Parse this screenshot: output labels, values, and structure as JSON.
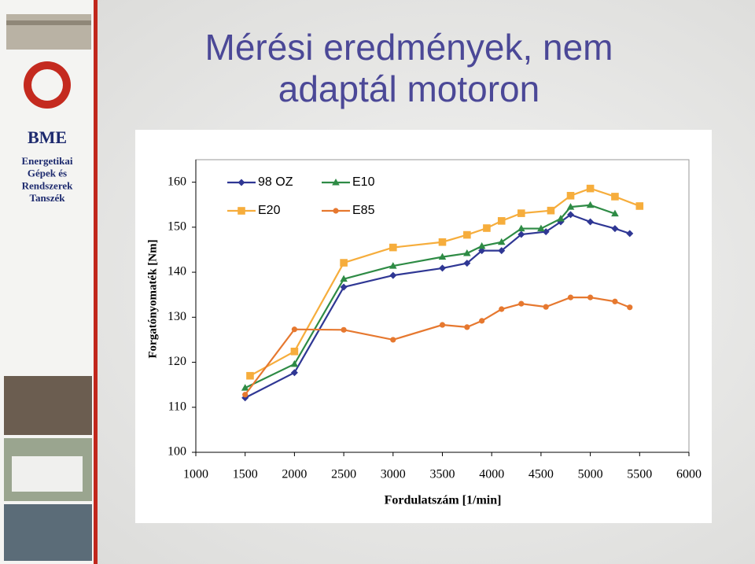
{
  "slide": {
    "title_lines": [
      "Mérési eredmények, nem",
      "adaptál motoron"
    ],
    "logo_text": "BME",
    "department_lines": [
      "Energetikai",
      "Gépek és",
      "Rendszerek",
      "Tanszék"
    ]
  },
  "chart_data": {
    "type": "line",
    "x_label": "Fordulatszám [1/min]",
    "y_label": "Forgatónyomaték [Nm]",
    "xlim": [
      1000,
      6000
    ],
    "xticks": [
      1000,
      1500,
      2000,
      2500,
      3000,
      3500,
      4000,
      4500,
      5000,
      5500,
      6000
    ],
    "ylim": [
      100,
      165
    ],
    "yticks": [
      100,
      110,
      120,
      130,
      140,
      150,
      160
    ],
    "legend": "upper left",
    "series": [
      {
        "name": "98 OZ",
        "color": "#2f3794",
        "marker": "diamond",
        "x": [
          1500,
          2000,
          2500,
          3000,
          3500,
          3750,
          3900,
          4100,
          4300,
          4550,
          4700,
          4800,
          5000,
          5250,
          5400
        ],
        "values": [
          112.1,
          117.7,
          136.7,
          139.3,
          140.9,
          142,
          144.8,
          144.8,
          148.4,
          149,
          151.2,
          152.8,
          151.2,
          149.7,
          148.6
        ]
      },
      {
        "name": "E10",
        "color": "#2e8b45",
        "marker": "triangle",
        "x": [
          1500,
          2000,
          2500,
          3000,
          3500,
          3750,
          3900,
          4100,
          4300,
          4500,
          4700,
          4800,
          5000,
          5250
        ],
        "values": [
          114.3,
          119.6,
          138.5,
          141.4,
          143.4,
          144.2,
          145.8,
          146.7,
          149.7,
          149.7,
          151.9,
          154.5,
          154.9,
          153
        ]
      },
      {
        "name": "E20",
        "color": "#f6ad3c",
        "marker": "square",
        "x": [
          1550,
          2000,
          2500,
          3000,
          3500,
          3750,
          3950,
          4100,
          4300,
          4600,
          4800,
          5000,
          5250,
          5500
        ],
        "values": [
          117,
          122.4,
          142.1,
          145.5,
          146.7,
          148.3,
          149.8,
          151.4,
          153.1,
          153.7,
          157,
          158.6,
          156.8,
          154.7
        ]
      },
      {
        "name": "E85",
        "color": "#e6782f",
        "marker": "circle",
        "x": [
          1500,
          2000,
          2500,
          3000,
          3500,
          3750,
          3900,
          4100,
          4300,
          4550,
          4800,
          5000,
          5250,
          5400
        ],
        "values": [
          112.8,
          127.3,
          127.2,
          125,
          128.3,
          127.8,
          129.2,
          131.8,
          133,
          132.3,
          134.4,
          134.4,
          133.5,
          132.2
        ]
      }
    ]
  }
}
